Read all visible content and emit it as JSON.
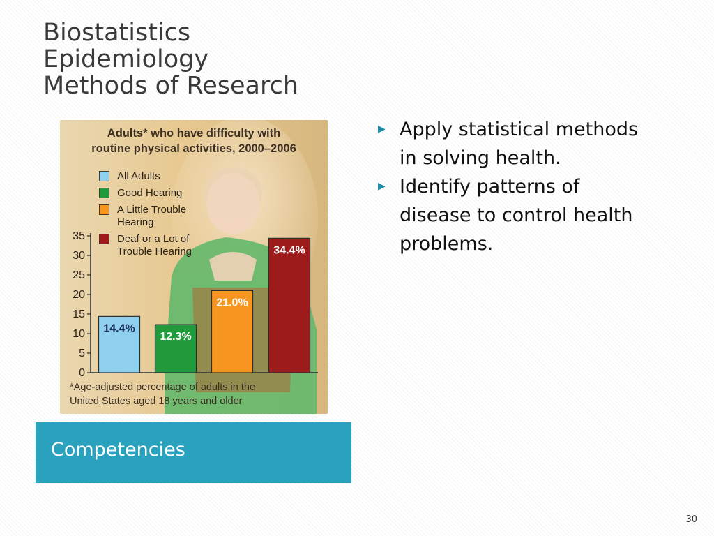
{
  "slide": {
    "title_lines": [
      "Biostatistics",
      "Epidemiology",
      "Methods of Research"
    ],
    "caption": "Competencies",
    "page_number": "30",
    "accent_color": "#2aa1bd"
  },
  "bullets": [
    "Apply statistical methods in solving health.",
    "Identify patterns of disease to control health problems."
  ],
  "chart_data": {
    "type": "bar",
    "title_lines": [
      "Adults* who have difficulty with",
      "routine physical activities, 2000–2006"
    ],
    "categories": [
      "All Adults",
      "Good Hearing",
      "A Little Trouble Hearing",
      "Deaf or a Lot of Trouble Hearing"
    ],
    "legend_lines": [
      [
        "All Adults"
      ],
      [
        "Good Hearing"
      ],
      [
        "A Little Trouble",
        "Hearing"
      ],
      [
        "Deaf or a Lot of",
        "Trouble Hearing"
      ]
    ],
    "values": [
      14.4,
      12.3,
      21.0,
      34.4
    ],
    "value_labels": [
      "14.4%",
      "12.3%",
      "21.0%",
      "34.4%"
    ],
    "colors": [
      "#8fd0ef",
      "#219a3b",
      "#f6951f",
      "#9e1b1c"
    ],
    "ylim": [
      0,
      35
    ],
    "yticks": [
      0,
      5,
      10,
      15,
      20,
      25,
      30,
      35
    ],
    "footnote_lines": [
      "*Age-adjusted percentage of adults in the",
      "United States aged 18 years and older"
    ],
    "legend_position": "top-left",
    "grid": false
  }
}
